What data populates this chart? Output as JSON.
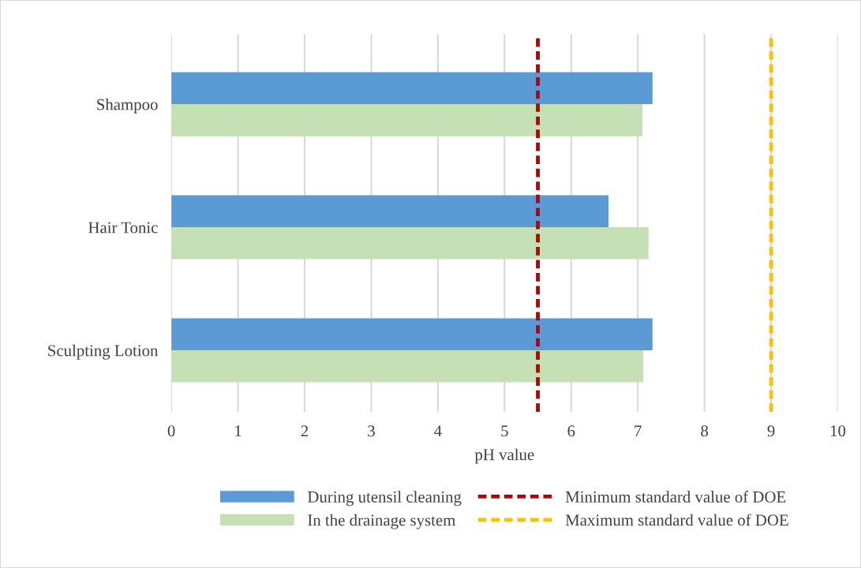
{
  "chart_data": {
    "type": "bar",
    "orientation": "horizontal",
    "xlabel": "pH value",
    "categories": [
      "Shampoo",
      "Hair Tonic",
      "Sculpting Lotion"
    ],
    "series": [
      {
        "name": "During utensil cleaning",
        "color": "#5b9bd5",
        "values": [
          7.22,
          6.56,
          7.22
        ]
      },
      {
        "name": "In the drainage system",
        "color": "#c5e0b4",
        "values": [
          7.07,
          7.16,
          7.08
        ]
      }
    ],
    "ref_lines": [
      {
        "axis": "x",
        "value": 5.5,
        "label": "Minimum standard value of DOE",
        "color": "#c00000",
        "line_style": "dashed"
      },
      {
        "axis": "x",
        "value": 9,
        "label": "Maximum standard value of DOE",
        "color": "#ffc000",
        "line_style": "dashed"
      }
    ],
    "xlim": [
      0,
      10
    ],
    "xticks": [
      0,
      1,
      2,
      3,
      4,
      5,
      6,
      7,
      8,
      9,
      10
    ],
    "grid": "x",
    "legend": "bottom"
  }
}
